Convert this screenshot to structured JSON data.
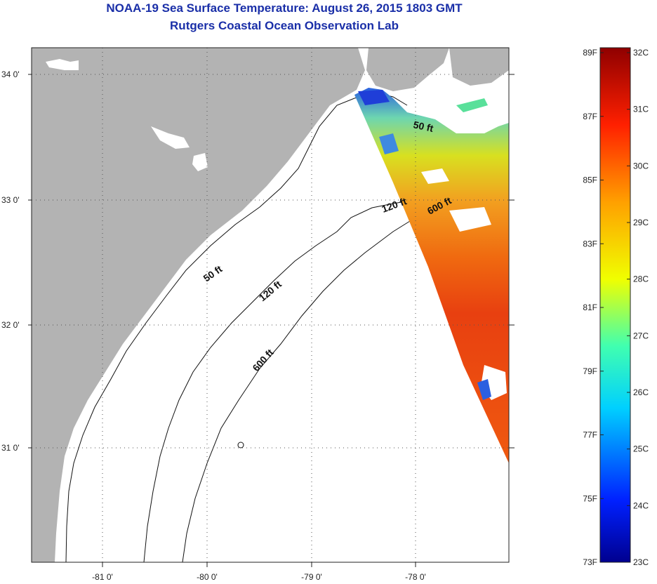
{
  "header": {
    "title": "NOAA-19 Sea Surface Temperature:  August 26, 2015 1803 GMT",
    "subtitle": "Rutgers Coastal Ocean Observation Lab"
  },
  "map": {
    "lat_labels": [
      "34 0'",
      "33 0'",
      "32 0'",
      "31 0'"
    ],
    "lon_labels": [
      "-81 0'",
      "-80 0'",
      "-79 0'",
      "-78 0'"
    ],
    "contour_labels": [
      {
        "id": "c50-north",
        "text": "50 ft"
      },
      {
        "id": "c120-north",
        "text": "120 ft"
      },
      {
        "id": "c600-north",
        "text": "600 ft"
      },
      {
        "id": "c50-south",
        "text": "50 ft"
      },
      {
        "id": "c120-south",
        "text": "120 ft"
      },
      {
        "id": "c600-south",
        "text": "600 ft"
      }
    ],
    "colors": {
      "land": "#b3b3b3",
      "ocean": "#ffffff",
      "grid": "#555555"
    }
  },
  "colorbar": {
    "top_label_f": "89F",
    "top_label_c": "32C",
    "bottom_label_f": "73F",
    "bottom_label_c": "23C",
    "fahrenheit_ticks": [
      "89F",
      "87F",
      "85F",
      "83F",
      "81F",
      "79F",
      "77F",
      "75F",
      "73F"
    ],
    "celsius_ticks": [
      "32C",
      "31C",
      "30C",
      "29C",
      "28C",
      "27C",
      "26C",
      "25C",
      "24C",
      "23C"
    ],
    "range_f": [
      73,
      89
    ],
    "range_c": [
      23,
      32
    ]
  }
}
